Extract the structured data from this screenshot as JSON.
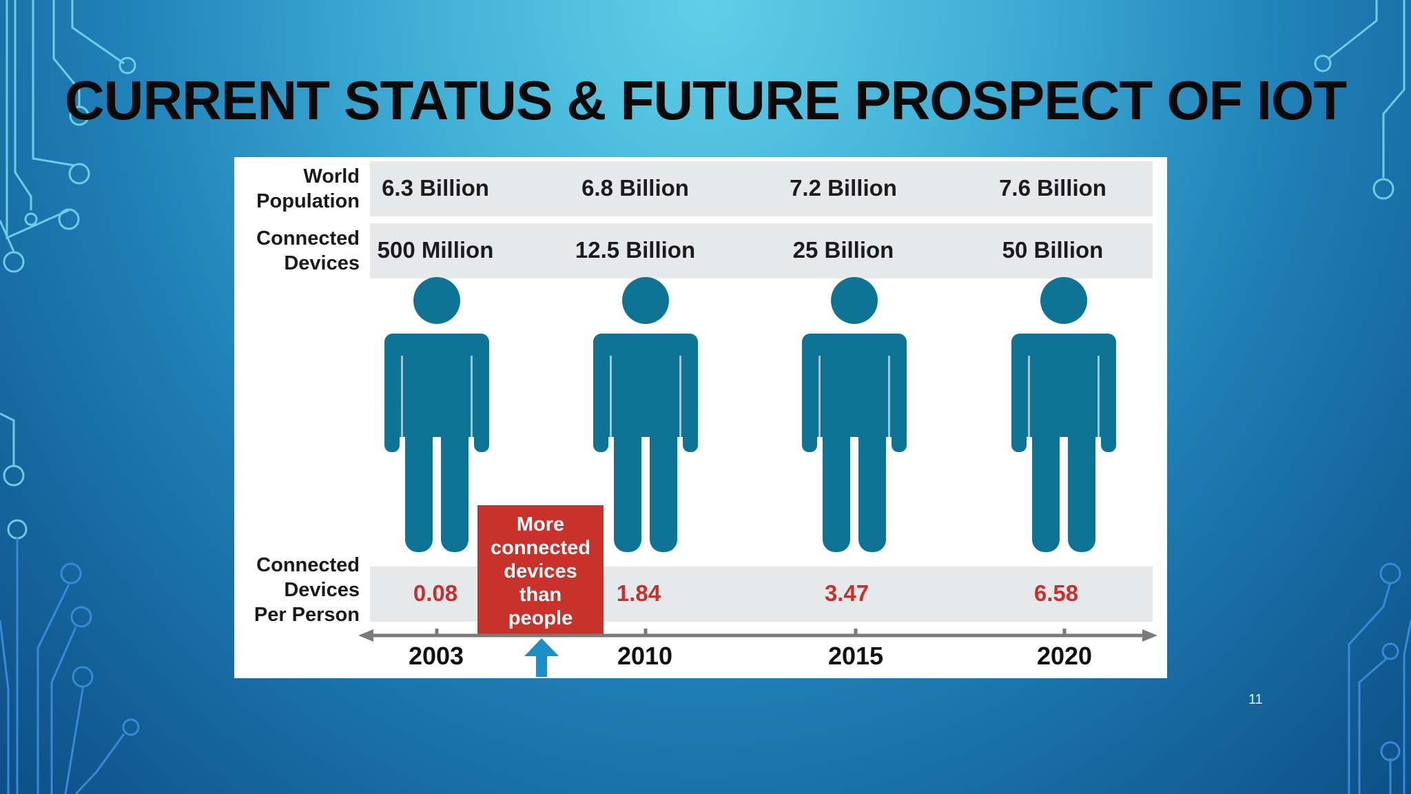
{
  "slide": {
    "title": "CURRENT STATUS & FUTURE PROSPECT OF IOT",
    "page_number": "11"
  },
  "infographic": {
    "row_labels": {
      "population": [
        "World",
        "Population"
      ],
      "devices": [
        "Connected",
        "Devices"
      ],
      "per_person": [
        "Connected",
        "Devices",
        "Per Person"
      ]
    },
    "columns": [
      {
        "year": "2003",
        "population": "6.3 Billion",
        "devices": "500 Million",
        "per_person": "0.08"
      },
      {
        "year": "2010",
        "population": "6.8 Billion",
        "devices": "12.5 Billion",
        "per_person": "1.84"
      },
      {
        "year": "2015",
        "population": "7.2 Billion",
        "devices": "25 Billion",
        "per_person": "3.47"
      },
      {
        "year": "2020",
        "population": "7.6 Billion",
        "devices": "50 Billion",
        "per_person": "6.58"
      }
    ],
    "callout": [
      "More",
      "connected",
      "devices",
      "than",
      "people"
    ],
    "icons": [
      "person-icon",
      "up-arrow-icon"
    ],
    "colors": {
      "person": "#0f7396",
      "callout": "#c8322b",
      "ratio_text": "#c6312d",
      "band": "#e6e8ea",
      "arrow": "#1d8fc6"
    }
  }
}
